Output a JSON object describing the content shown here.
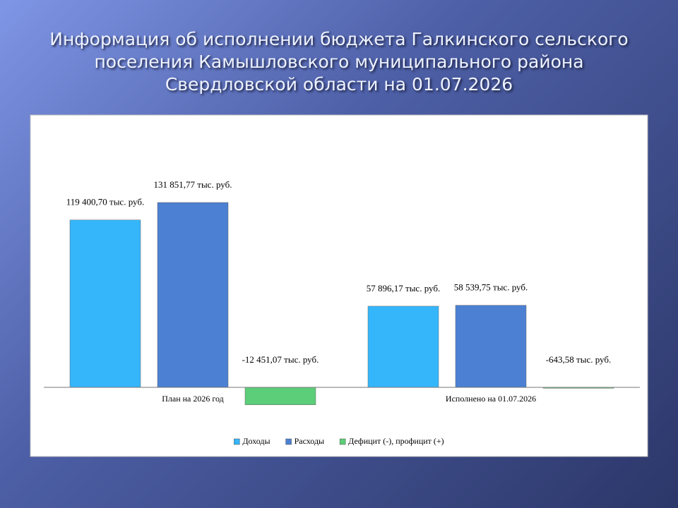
{
  "chart_data": {
    "type": "bar",
    "title": "Информация об исполнении бюджета Галкинского сельского поселения Камышловского муниципального района Свердловской области на 01.07.2026",
    "categories": [
      "План на 2026 год",
      "Исполнено на 01.07.2026"
    ],
    "series": [
      {
        "name": "Доходы",
        "color": "#35b6fb",
        "values": [
          119400.7,
          57896.17
        ],
        "value_labels": [
          "119 400,70 тыс. руб.",
          "57 896,17 тыс. руб."
        ]
      },
      {
        "name": "Расходы",
        "color": "#4b80d2",
        "values": [
          131851.77,
          58539.75
        ],
        "value_labels": [
          "131 851,77 тыс. руб.",
          "58 539,75 тыс. руб."
        ]
      },
      {
        "name": "Дефицит (-), профицит (+)",
        "color": "#5ccd78",
        "values": [
          -12451.07,
          -643.58
        ],
        "value_labels": [
          "-12 451,07 тыс. руб.",
          "-643,58 тыс. руб."
        ]
      }
    ],
    "legend": "bottom"
  }
}
